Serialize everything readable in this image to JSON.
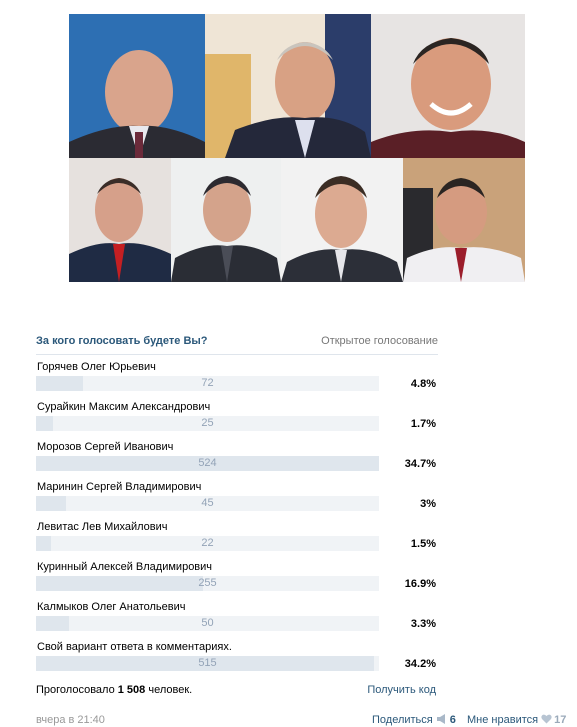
{
  "poll": {
    "question": "За кого голосовать будете Вы?",
    "type": "Открытое голосование",
    "options": [
      {
        "label": "Горячев Олег Юрьевич",
        "count": "72",
        "percent": "4.8%",
        "share": 0.048
      },
      {
        "label": "Сурайкин Максим Александрович",
        "count": "25",
        "percent": "1.7%",
        "share": 0.017
      },
      {
        "label": "Морозов Сергей Иванович",
        "count": "524",
        "percent": "34.7%",
        "share": 0.347
      },
      {
        "label": "Маринин Сергей Владимирович",
        "count": "45",
        "percent": "3%",
        "share": 0.03
      },
      {
        "label": "Левитас Лев Михайлович",
        "count": "22",
        "percent": "1.5%",
        "share": 0.015
      },
      {
        "label": "Куринный Алексей Владимирович",
        "count": "255",
        "percent": "16.9%",
        "share": 0.169
      },
      {
        "label": "Калмыков Олег Анатольевич",
        "count": "50",
        "percent": "3.3%",
        "share": 0.033
      },
      {
        "label": "Свой вариант ответа в комментариях.",
        "count": "515",
        "percent": "34.2%",
        "share": 0.342
      }
    ],
    "total_prefix": "Проголосовало",
    "total_count": "1 508",
    "total_suffix": "человек.",
    "get_code": "Получить код"
  },
  "post": {
    "timestamp": "вчера в 21:40",
    "share_label": "Поделиться",
    "share_count": "6",
    "like_label": "Мне нравится",
    "like_count": "17"
  },
  "colors": {
    "link": "#2b587a",
    "bar_fill": "#dfe6ed",
    "bar_track": "#f0f3f6",
    "count_text": "#93a3b7"
  }
}
